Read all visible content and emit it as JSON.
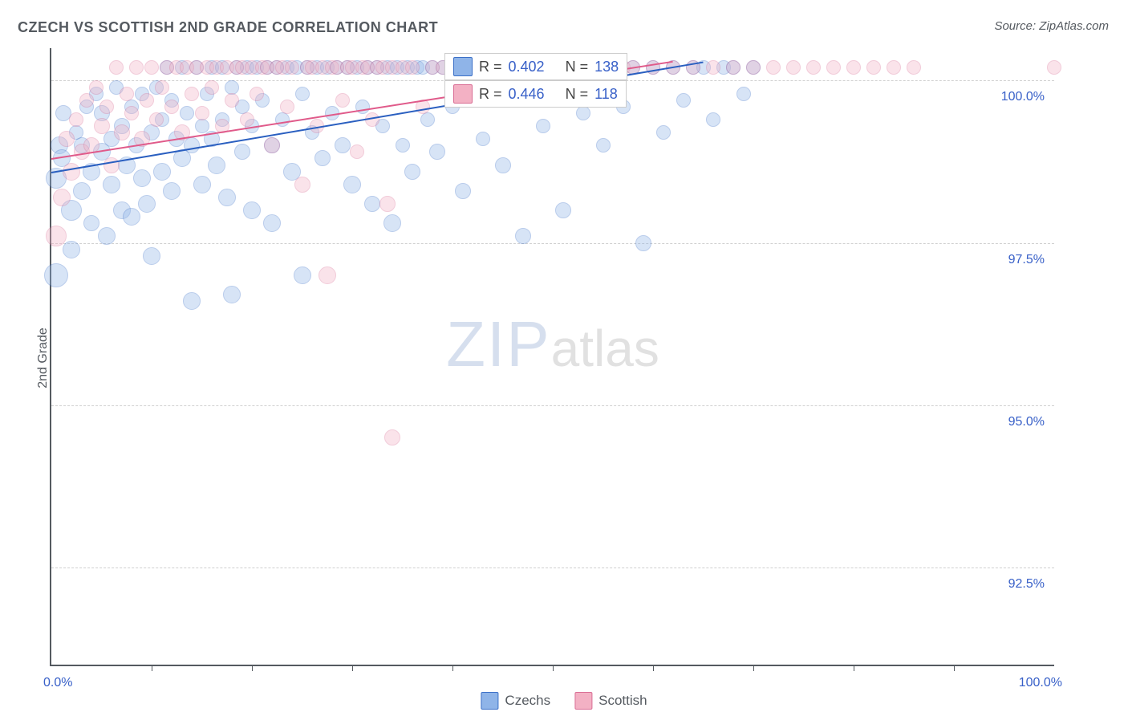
{
  "title": "CZECH VS SCOTTISH 2ND GRADE CORRELATION CHART",
  "source_label": "Source: ZipAtlas.com",
  "y_axis_label": "2nd Grade",
  "watermark": {
    "bold": "ZIP",
    "rest": "atlas"
  },
  "chart": {
    "type": "scatter",
    "background_color": "#ffffff",
    "grid_color": "#d0d0d0",
    "axis_color": "#555a60",
    "text_color": "#555a60",
    "value_color": "#3860c8",
    "xlim": [
      0,
      100
    ],
    "ylim": [
      91,
      100.5
    ],
    "yticks": [
      {
        "v": 92.5,
        "label": "92.5%"
      },
      {
        "v": 95.0,
        "label": "95.0%"
      },
      {
        "v": 97.5,
        "label": "97.5%"
      },
      {
        "v": 100.0,
        "label": "100.0%"
      }
    ],
    "xticks_minor": [
      10,
      20,
      30,
      40,
      50,
      60,
      70,
      80,
      90
    ],
    "xticks_label": [
      {
        "v": 0,
        "label": "0.0%"
      },
      {
        "v": 100,
        "label": "100.0%"
      }
    ],
    "marker_radius": 10,
    "marker_opacity": 0.35,
    "series": [
      {
        "name": "Czechs",
        "fill_color": "#8fb4e8",
        "stroke_color": "#3a6fc7",
        "trend_color": "#2a5fc0",
        "trend": {
          "x1": 0,
          "y1": 98.6,
          "x2": 65,
          "y2": 100.3
        },
        "stats": {
          "R": "0.402",
          "N": "138"
        },
        "points": [
          [
            0.5,
            97.0,
            14
          ],
          [
            0.5,
            98.5,
            12
          ],
          [
            0.8,
            99.0,
            10
          ],
          [
            1.0,
            98.8,
            10
          ],
          [
            1.2,
            99.5,
            9
          ],
          [
            2,
            98.0,
            12
          ],
          [
            2,
            97.4,
            10
          ],
          [
            2.5,
            99.2,
            8
          ],
          [
            3,
            99.0,
            9
          ],
          [
            3,
            98.3,
            10
          ],
          [
            3.5,
            99.6,
            8
          ],
          [
            4,
            98.6,
            10
          ],
          [
            4,
            97.8,
            9
          ],
          [
            4.5,
            99.8,
            8
          ],
          [
            5,
            98.9,
            10
          ],
          [
            5,
            99.5,
            9
          ],
          [
            5.5,
            97.6,
            10
          ],
          [
            6,
            98.4,
            10
          ],
          [
            6,
            99.1,
            9
          ],
          [
            6.5,
            99.9,
            8
          ],
          [
            7,
            98.0,
            10
          ],
          [
            7,
            99.3,
            9
          ],
          [
            7.5,
            98.7,
            10
          ],
          [
            8,
            99.6,
            8
          ],
          [
            8,
            97.9,
            10
          ],
          [
            8.5,
            99.0,
            9
          ],
          [
            9,
            98.5,
            10
          ],
          [
            9,
            99.8,
            8
          ],
          [
            9.5,
            98.1,
            10
          ],
          [
            10,
            99.2,
            9
          ],
          [
            10,
            97.3,
            10
          ],
          [
            10.5,
            99.9,
            8
          ],
          [
            11,
            98.6,
            10
          ],
          [
            11,
            99.4,
            8
          ],
          [
            11.5,
            100.2,
            8
          ],
          [
            12,
            99.7,
            8
          ],
          [
            12,
            98.3,
            10
          ],
          [
            12.5,
            99.1,
            9
          ],
          [
            13,
            100.2,
            8
          ],
          [
            13,
            98.8,
            10
          ],
          [
            13.5,
            99.5,
            8
          ],
          [
            14,
            96.6,
            10
          ],
          [
            14,
            99.0,
            9
          ],
          [
            14.5,
            100.2,
            8
          ],
          [
            15,
            99.3,
            8
          ],
          [
            15,
            98.4,
            10
          ],
          [
            15.5,
            99.8,
            8
          ],
          [
            16,
            100.2,
            8
          ],
          [
            16,
            99.1,
            9
          ],
          [
            16.5,
            98.7,
            10
          ],
          [
            17,
            100.2,
            8
          ],
          [
            17,
            99.4,
            8
          ],
          [
            17.5,
            98.2,
            10
          ],
          [
            18,
            99.9,
            8
          ],
          [
            18,
            96.7,
            10
          ],
          [
            18.5,
            100.2,
            8
          ],
          [
            19,
            99.6,
            8
          ],
          [
            19,
            98.9,
            9
          ],
          [
            19.5,
            100.2,
            8
          ],
          [
            20,
            99.3,
            8
          ],
          [
            20,
            98.0,
            10
          ],
          [
            20.5,
            100.2,
            8
          ],
          [
            21,
            99.7,
            8
          ],
          [
            21.5,
            100.2,
            8
          ],
          [
            22,
            99.0,
            9
          ],
          [
            22,
            97.8,
            10
          ],
          [
            22.5,
            100.2,
            8
          ],
          [
            23,
            99.4,
            8
          ],
          [
            23.5,
            100.2,
            8
          ],
          [
            24,
            98.6,
            10
          ],
          [
            24.5,
            100.2,
            8
          ],
          [
            25,
            99.8,
            8
          ],
          [
            25,
            97.0,
            10
          ],
          [
            25.5,
            100.2,
            8
          ],
          [
            26,
            99.2,
            8
          ],
          [
            26.5,
            100.2,
            8
          ],
          [
            27,
            98.8,
            9
          ],
          [
            27.5,
            100.2,
            8
          ],
          [
            28,
            99.5,
            8
          ],
          [
            28.5,
            100.2,
            8
          ],
          [
            29,
            99.0,
            9
          ],
          [
            29.5,
            100.2,
            8
          ],
          [
            30,
            98.4,
            10
          ],
          [
            30.5,
            100.2,
            8
          ],
          [
            31,
            99.6,
            8
          ],
          [
            31.5,
            100.2,
            8
          ],
          [
            32,
            98.1,
            9
          ],
          [
            32.5,
            100.2,
            8
          ],
          [
            33,
            99.3,
            8
          ],
          [
            33.5,
            100.2,
            8
          ],
          [
            34,
            97.8,
            10
          ],
          [
            34.5,
            100.2,
            8
          ],
          [
            35,
            99.0,
            8
          ],
          [
            35.5,
            100.2,
            8
          ],
          [
            36,
            98.6,
            9
          ],
          [
            36.5,
            100.2,
            8
          ],
          [
            37,
            100.2,
            8
          ],
          [
            37.5,
            99.4,
            8
          ],
          [
            38,
            100.2,
            8
          ],
          [
            38.5,
            98.9,
            9
          ],
          [
            39,
            100.2,
            8
          ],
          [
            40,
            99.6,
            8
          ],
          [
            40.5,
            100.2,
            8
          ],
          [
            41,
            98.3,
            9
          ],
          [
            42,
            100.2,
            8
          ],
          [
            43,
            99.1,
            8
          ],
          [
            44,
            100.2,
            8
          ],
          [
            45,
            98.7,
            9
          ],
          [
            46,
            100.2,
            8
          ],
          [
            47,
            97.6,
            9
          ],
          [
            48,
            100.2,
            8
          ],
          [
            49,
            99.3,
            8
          ],
          [
            50,
            100.2,
            8
          ],
          [
            51,
            98.0,
            9
          ],
          [
            52,
            100.2,
            8
          ],
          [
            53,
            99.5,
            8
          ],
          [
            54,
            100.2,
            8
          ],
          [
            55,
            99.0,
            8
          ],
          [
            56,
            100.2,
            8
          ],
          [
            57,
            99.6,
            8
          ],
          [
            58,
            100.2,
            8
          ],
          [
            59,
            97.5,
            9
          ],
          [
            60,
            100.2,
            8
          ],
          [
            61,
            99.2,
            8
          ],
          [
            62,
            100.2,
            8
          ],
          [
            63,
            99.7,
            8
          ],
          [
            64,
            100.2,
            8
          ],
          [
            65,
            100.2,
            8
          ],
          [
            66,
            99.4,
            8
          ],
          [
            67,
            100.2,
            8
          ],
          [
            68,
            100.2,
            8
          ],
          [
            69,
            99.8,
            8
          ],
          [
            70,
            100.2,
            8
          ]
        ]
      },
      {
        "name": "Scottish",
        "fill_color": "#f3b1c4",
        "stroke_color": "#d96d94",
        "trend_color": "#e05a8a",
        "trend": {
          "x1": 0,
          "y1": 98.8,
          "x2": 62,
          "y2": 100.3
        },
        "stats": {
          "R": "0.446",
          "N": "118"
        },
        "points": [
          [
            0.5,
            97.6,
            12
          ],
          [
            1,
            98.2,
            10
          ],
          [
            1.5,
            99.1,
            9
          ],
          [
            2,
            98.6,
            10
          ],
          [
            2.5,
            99.4,
            8
          ],
          [
            3,
            98.9,
            9
          ],
          [
            3.5,
            99.7,
            8
          ],
          [
            4,
            99.0,
            9
          ],
          [
            4.5,
            99.9,
            8
          ],
          [
            5,
            99.3,
            9
          ],
          [
            5.5,
            99.6,
            8
          ],
          [
            6,
            98.7,
            9
          ],
          [
            6.5,
            100.2,
            8
          ],
          [
            7,
            99.2,
            9
          ],
          [
            7.5,
            99.8,
            8
          ],
          [
            8,
            99.5,
            8
          ],
          [
            8.5,
            100.2,
            8
          ],
          [
            9,
            99.1,
            9
          ],
          [
            9.5,
            99.7,
            8
          ],
          [
            10,
            100.2,
            8
          ],
          [
            10.5,
            99.4,
            8
          ],
          [
            11,
            99.9,
            8
          ],
          [
            11.5,
            100.2,
            8
          ],
          [
            12,
            99.6,
            8
          ],
          [
            12.5,
            100.2,
            8
          ],
          [
            13,
            99.2,
            9
          ],
          [
            13.5,
            100.2,
            8
          ],
          [
            14,
            99.8,
            8
          ],
          [
            14.5,
            100.2,
            8
          ],
          [
            15,
            99.5,
            8
          ],
          [
            15.5,
            100.2,
            8
          ],
          [
            16,
            99.9,
            8
          ],
          [
            16.5,
            100.2,
            8
          ],
          [
            17,
            99.3,
            8
          ],
          [
            17.5,
            100.2,
            8
          ],
          [
            18,
            99.7,
            8
          ],
          [
            18.5,
            100.2,
            8
          ],
          [
            19,
            100.2,
            8
          ],
          [
            19.5,
            99.4,
            8
          ],
          [
            20,
            100.2,
            8
          ],
          [
            20.5,
            99.8,
            8
          ],
          [
            21,
            100.2,
            8
          ],
          [
            21.5,
            100.2,
            8
          ],
          [
            22,
            99.0,
            9
          ],
          [
            22.5,
            100.2,
            8
          ],
          [
            23,
            100.2,
            8
          ],
          [
            23.5,
            99.6,
            8
          ],
          [
            24,
            100.2,
            8
          ],
          [
            25,
            98.4,
            9
          ],
          [
            25.5,
            100.2,
            8
          ],
          [
            26,
            100.2,
            8
          ],
          [
            26.5,
            99.3,
            8
          ],
          [
            27,
            100.2,
            8
          ],
          [
            27.5,
            97.0,
            10
          ],
          [
            28,
            100.2,
            8
          ],
          [
            28.5,
            100.2,
            8
          ],
          [
            29,
            99.7,
            8
          ],
          [
            29.5,
            100.2,
            8
          ],
          [
            30,
            100.2,
            8
          ],
          [
            30.5,
            98.9,
            8
          ],
          [
            31,
            100.2,
            8
          ],
          [
            31.5,
            100.2,
            8
          ],
          [
            32,
            99.4,
            8
          ],
          [
            32.5,
            100.2,
            8
          ],
          [
            33,
            100.2,
            8
          ],
          [
            33.5,
            98.1,
            9
          ],
          [
            34,
            100.2,
            8
          ],
          [
            34,
            94.5,
            9
          ],
          [
            35,
            100.2,
            8
          ],
          [
            36,
            100.2,
            8
          ],
          [
            37,
            99.6,
            8
          ],
          [
            38,
            100.2,
            8
          ],
          [
            39,
            100.2,
            8
          ],
          [
            40,
            100.2,
            8
          ],
          [
            41,
            100.2,
            8
          ],
          [
            42,
            100.2,
            8
          ],
          [
            43,
            100.2,
            8
          ],
          [
            44,
            100.2,
            8
          ],
          [
            45,
            100.2,
            8
          ],
          [
            46,
            100.2,
            8
          ],
          [
            47,
            100.2,
            8
          ],
          [
            48,
            100.2,
            8
          ],
          [
            49,
            100.2,
            8
          ],
          [
            50,
            100.2,
            8
          ],
          [
            51,
            100.2,
            8
          ],
          [
            52,
            100.2,
            8
          ],
          [
            53,
            100.2,
            8
          ],
          [
            54,
            100.2,
            8
          ],
          [
            55,
            100.2,
            8
          ],
          [
            56,
            100.2,
            8
          ],
          [
            57,
            100.2,
            8
          ],
          [
            58,
            100.2,
            8
          ],
          [
            60,
            100.2,
            8
          ],
          [
            62,
            100.2,
            8
          ],
          [
            64,
            100.2,
            8
          ],
          [
            66,
            100.2,
            8
          ],
          [
            68,
            100.2,
            8
          ],
          [
            70,
            100.2,
            8
          ],
          [
            72,
            100.2,
            8
          ],
          [
            74,
            100.2,
            8
          ],
          [
            76,
            100.2,
            8
          ],
          [
            78,
            100.2,
            8
          ],
          [
            80,
            100.2,
            8
          ],
          [
            82,
            100.2,
            8
          ],
          [
            84,
            100.2,
            8
          ],
          [
            86,
            100.2,
            8
          ],
          [
            100,
            100.2,
            8
          ]
        ]
      }
    ]
  },
  "legend": [
    {
      "label": "Czechs",
      "fill": "#8fb4e8",
      "stroke": "#3a6fc7"
    },
    {
      "label": "Scottish",
      "fill": "#f3b1c4",
      "stroke": "#d96d94"
    }
  ],
  "stat_labels": {
    "R_prefix": "R = ",
    "N_prefix": "N = "
  }
}
